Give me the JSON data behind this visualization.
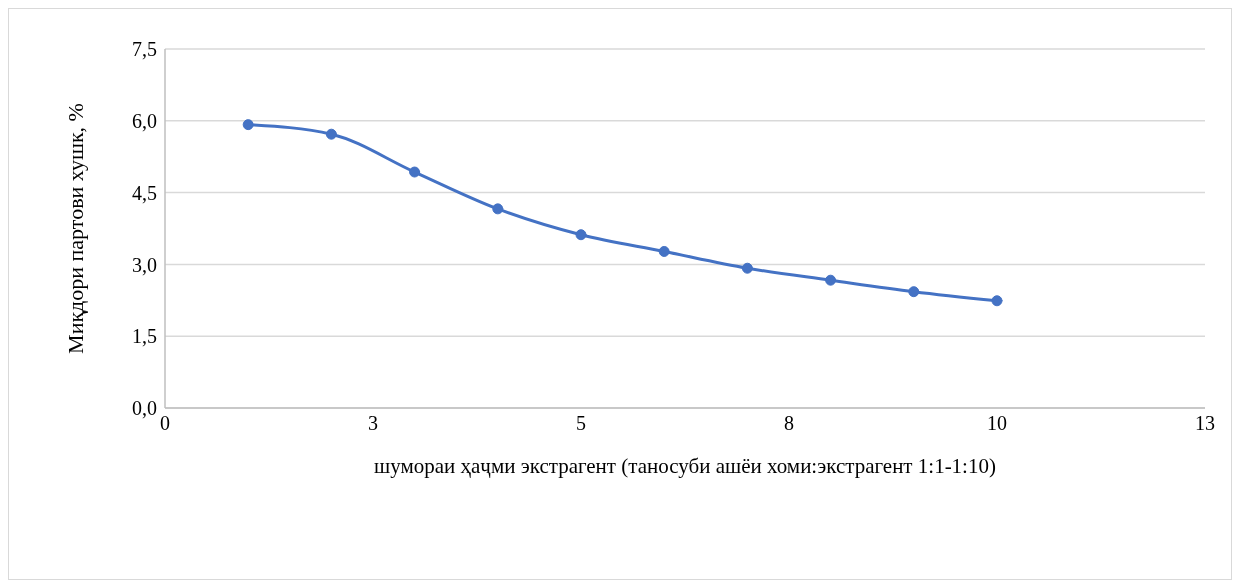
{
  "chart_data": {
    "type": "line",
    "xlabel": "шумораи ҳаҷми экстрагент (таносуби ашёи хоми:экстрагент 1:1-1:10)",
    "ylabel": "Миқдори партови хушк, %",
    "x": [
      1,
      2,
      3,
      4,
      5,
      6,
      7,
      8,
      9,
      10
    ],
    "series": [
      {
        "color": "#4472c4",
        "values": [
          5.92,
          5.72,
          4.93,
          4.16,
          3.62,
          3.27,
          2.92,
          2.67,
          2.43,
          2.24
        ]
      }
    ],
    "xlim": [
      0,
      12.5
    ],
    "xticks": [
      0,
      {
        "value": 2.5,
        "label": "3"
      },
      5,
      {
        "value": 7.5,
        "label": "8"
      },
      10,
      {
        "value": 12.5,
        "label": "13"
      }
    ],
    "ylim": [
      0,
      7.5
    ],
    "yticks": [
      {
        "value": 0,
        "label": "0,0"
      },
      {
        "value": 1.5,
        "label": "1,5"
      },
      {
        "value": 3,
        "label": "3,0"
      },
      {
        "value": 4.5,
        "label": "4,5"
      },
      {
        "value": 6,
        "label": "6,0"
      },
      {
        "value": 7.5,
        "label": "7,5"
      }
    ],
    "grid": "y",
    "marker": "circle",
    "line_style": "solid"
  }
}
